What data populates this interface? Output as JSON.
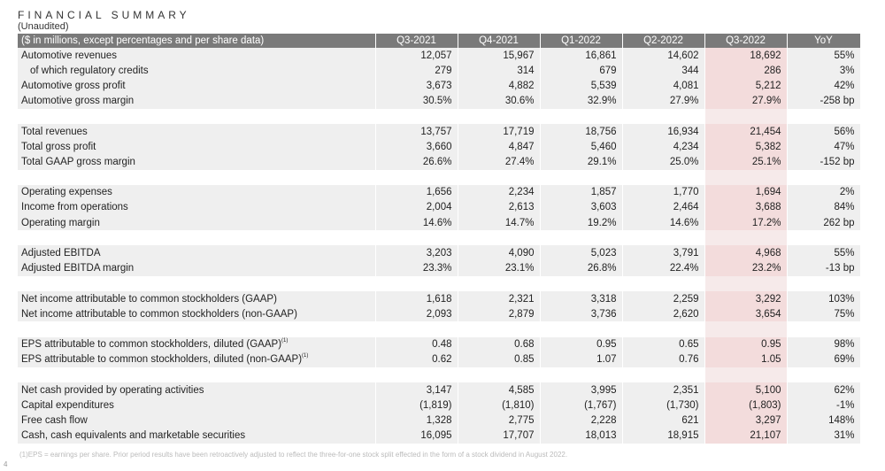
{
  "header": {
    "title": "FINANCIAL SUMMARY",
    "subtitle": "(Unaudited)"
  },
  "table": {
    "columns": [
      "($ in millions, except percentages and per share data)",
      "Q3-2021",
      "Q4-2021",
      "Q1-2022",
      "Q2-2022",
      "Q3-2022",
      "YoY"
    ],
    "groups": [
      [
        {
          "label": "Automotive revenues",
          "values": [
            "12,057",
            "15,967",
            "16,861",
            "14,602",
            "18,692",
            "55%"
          ]
        },
        {
          "label": "of which regulatory credits",
          "values": [
            "279",
            "314",
            "679",
            "344",
            "286",
            "3%"
          ],
          "indent": true
        },
        {
          "label": "Automotive gross profit",
          "values": [
            "3,673",
            "4,882",
            "5,539",
            "4,081",
            "5,212",
            "42%"
          ]
        },
        {
          "label": "Automotive gross margin",
          "values": [
            "30.5%",
            "30.6%",
            "32.9%",
            "27.9%",
            "27.9%",
            "-258 bp"
          ]
        }
      ],
      [
        {
          "label": "Total revenues",
          "values": [
            "13,757",
            "17,719",
            "18,756",
            "16,934",
            "21,454",
            "56%"
          ]
        },
        {
          "label": "Total gross profit",
          "values": [
            "3,660",
            "4,847",
            "5,460",
            "4,234",
            "5,382",
            "47%"
          ]
        },
        {
          "label": "Total GAAP gross margin",
          "values": [
            "26.6%",
            "27.4%",
            "29.1%",
            "25.0%",
            "25.1%",
            "-152 bp"
          ]
        }
      ],
      [
        {
          "label": "Operating expenses",
          "values": [
            "1,656",
            "2,234",
            "1,857",
            "1,770",
            "1,694",
            "2%"
          ]
        },
        {
          "label": "Income from operations",
          "values": [
            "2,004",
            "2,613",
            "3,603",
            "2,464",
            "3,688",
            "84%"
          ]
        },
        {
          "label": "Operating margin",
          "values": [
            "14.6%",
            "14.7%",
            "19.2%",
            "14.6%",
            "17.2%",
            "262 bp"
          ]
        }
      ],
      [
        {
          "label": "Adjusted EBITDA",
          "values": [
            "3,203",
            "4,090",
            "5,023",
            "3,791",
            "4,968",
            "55%"
          ]
        },
        {
          "label": "Adjusted EBITDA margin",
          "values": [
            "23.3%",
            "23.1%",
            "26.8%",
            "22.4%",
            "23.2%",
            "-13 bp"
          ]
        }
      ],
      [
        {
          "label": "Net income attributable to common stockholders (GAAP)",
          "values": [
            "1,618",
            "2,321",
            "3,318",
            "2,259",
            "3,292",
            "103%"
          ]
        },
        {
          "label": "Net income attributable to common stockholders (non-GAAP)",
          "values": [
            "2,093",
            "2,879",
            "3,736",
            "2,620",
            "3,654",
            "75%"
          ]
        }
      ],
      [
        {
          "label": "EPS attributable to common stockholders, diluted (GAAP)",
          "sup": "(1)",
          "values": [
            "0.48",
            "0.68",
            "0.95",
            "0.65",
            "0.95",
            "98%"
          ]
        },
        {
          "label": "EPS attributable to common stockholders, diluted (non-GAAP)",
          "sup": "(1)",
          "values": [
            "0.62",
            "0.85",
            "1.07",
            "0.76",
            "1.05",
            "69%"
          ]
        }
      ],
      [
        {
          "label": "Net cash provided by operating activities",
          "values": [
            "3,147",
            "4,585",
            "3,995",
            "2,351",
            "5,100",
            "62%"
          ]
        },
        {
          "label": "Capital expenditures",
          "values": [
            "(1,819)",
            "(1,810)",
            "(1,767)",
            "(1,730)",
            "(1,803)",
            "-1%"
          ]
        },
        {
          "label": "Free cash flow",
          "values": [
            "1,328",
            "2,775",
            "2,228",
            "621",
            "3,297",
            "148%"
          ]
        },
        {
          "label": "Cash, cash equivalents and marketable securities",
          "values": [
            "16,095",
            "17,707",
            "18,013",
            "18,915",
            "21,107",
            "31%"
          ]
        }
      ]
    ]
  },
  "footnote": "(1)EPS = earnings per share. Prior period results have been retroactively adjusted to reflect the three-for-one stock split effected in the form of a stock dividend in August 2022.",
  "page_number": "4",
  "colors": {
    "header_bg": "#7a7a7a",
    "row_band": "#efefef",
    "highlight": "#f3dcdc"
  }
}
